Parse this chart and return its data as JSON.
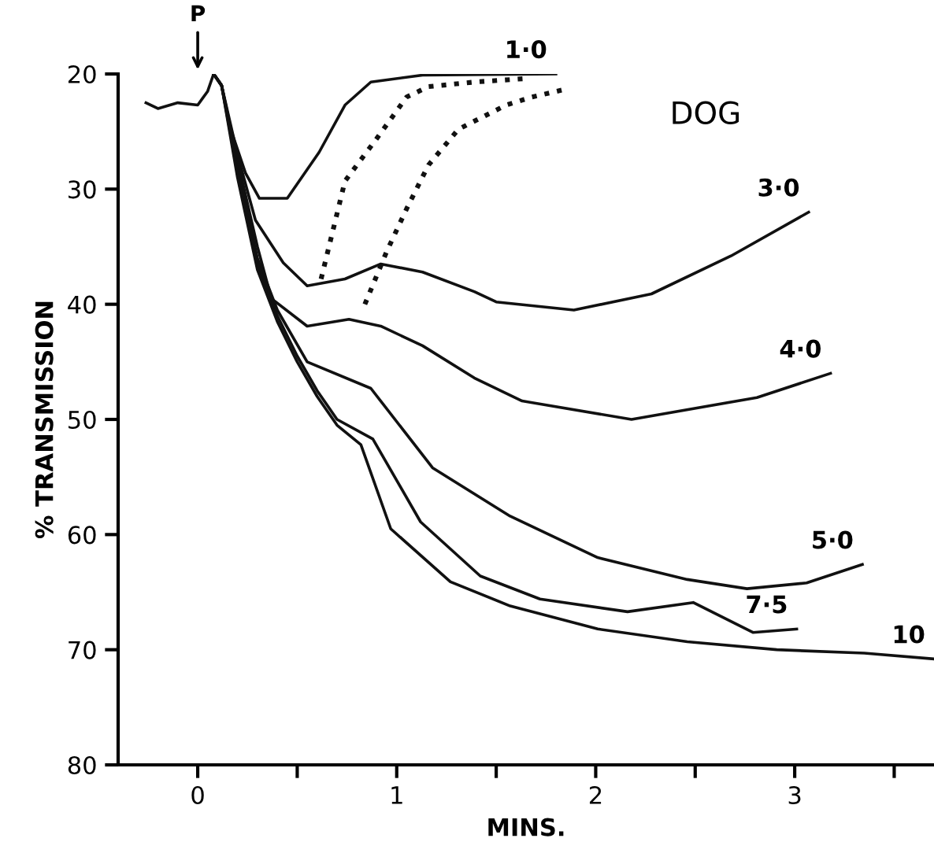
{
  "chart_data": {
    "type": "line",
    "title": "DOG",
    "xlabel": "MINS.",
    "ylabel": "% TRANSMISSION",
    "xlim": [
      -0.4,
      3.7
    ],
    "ylim": [
      80,
      20
    ],
    "xticks": [
      0,
      {
        "value": 0.5,
        "label": null
      },
      1,
      {
        "value": 1.5,
        "label": null
      },
      2,
      {
        "value": 2.5,
        "label": null
      },
      3,
      {
        "value": 3.5,
        "label": null
      }
    ],
    "yticks": [
      20,
      30,
      40,
      50,
      60,
      70,
      80
    ],
    "grid": false,
    "marker": "none",
    "series": [
      {
        "name": "1·0",
        "color": "#111111",
        "line_style": "solid",
        "x": [
          -0.26,
          -0.2,
          -0.1,
          0,
          0.05,
          0.08,
          0.12,
          0.16,
          0.24,
          0.31,
          0.45,
          0.61,
          0.74,
          0.87,
          1.13,
          1.8
        ],
        "values": [
          22.5,
          23,
          22.5,
          22.7,
          21.5,
          20,
          21,
          24.5,
          28.6,
          30.8,
          30.8,
          26.8,
          22.7,
          20.7,
          20.1,
          20
        ]
      },
      {
        "name": "3·0",
        "color": "#111111",
        "line_style": "solid",
        "x": [
          0.08,
          0.12,
          0.2,
          0.29,
          0.43,
          0.55,
          0.74,
          0.92,
          1.13,
          1.39,
          1.5,
          1.89,
          2.28,
          2.68,
          3.07
        ],
        "values": [
          20,
          21,
          27,
          32.7,
          36.4,
          38.4,
          37.8,
          36.5,
          37.2,
          38.9,
          39.8,
          40.5,
          39.1,
          35.8,
          32
        ]
      },
      {
        "name": "4·0",
        "color": "#111111",
        "line_style": "solid",
        "x": [
          0.08,
          0.12,
          0.2,
          0.3,
          0.37,
          0.55,
          0.76,
          0.92,
          1.13,
          1.39,
          1.63,
          2.18,
          2.81,
          3.18
        ],
        "values": [
          20,
          21,
          27.5,
          35,
          39.5,
          41.9,
          41.3,
          41.9,
          43.6,
          46.4,
          48.4,
          50,
          48.1,
          46
        ]
      },
      {
        "name": "5·0",
        "color": "#111111",
        "line_style": "solid",
        "x": [
          0.08,
          0.12,
          0.2,
          0.3,
          0.4,
          0.55,
          0.87,
          1.18,
          1.57,
          2.01,
          2.46,
          2.76,
          3.06,
          3.34
        ],
        "values": [
          20,
          21,
          28,
          36,
          40.5,
          45,
          47.3,
          54.2,
          58.4,
          62,
          63.9,
          64.7,
          64.2,
          62.6
        ]
      },
      {
        "name": "7·5",
        "color": "#111111",
        "line_style": "solid",
        "x": [
          0.08,
          0.12,
          0.2,
          0.3,
          0.4,
          0.5,
          0.6,
          0.7,
          0.88,
          1.12,
          1.42,
          1.72,
          2.16,
          2.49,
          2.79,
          3.01
        ],
        "values": [
          20,
          21,
          28.5,
          36.5,
          41,
          44.5,
          47.5,
          50,
          51.7,
          58.9,
          63.6,
          65.6,
          66.7,
          65.9,
          68.5,
          68.2
        ]
      },
      {
        "name": "10",
        "color": "#111111",
        "line_style": "solid",
        "x": [
          0.08,
          0.12,
          0.2,
          0.3,
          0.4,
          0.5,
          0.6,
          0.7,
          0.82,
          0.97,
          1.27,
          1.57,
          2.01,
          2.46,
          2.91,
          3.35,
          3.7
        ],
        "values": [
          20,
          21,
          29,
          37,
          41.5,
          45,
          48,
          50.5,
          52.2,
          59.5,
          64.1,
          66.2,
          68.2,
          69.3,
          70,
          70.3,
          70.8
        ]
      },
      {
        "color": "#111111",
        "line_style": "dotted",
        "x": [
          0.62,
          0.74,
          0.9,
          1.05,
          1.16,
          1.39,
          1.65
        ],
        "values": [
          37.8,
          29.3,
          25.6,
          22,
          21.1,
          20.7,
          20.4
        ]
      },
      {
        "color": "#111111",
        "line_style": "dotted",
        "x": [
          0.84,
          0.95,
          1.05,
          1.16,
          1.31,
          1.55,
          1.68,
          1.83
        ],
        "values": [
          40,
          35.4,
          31.7,
          27.9,
          24.8,
          22.7,
          22,
          21.4
        ]
      }
    ],
    "annotations": [
      "P"
    ]
  }
}
